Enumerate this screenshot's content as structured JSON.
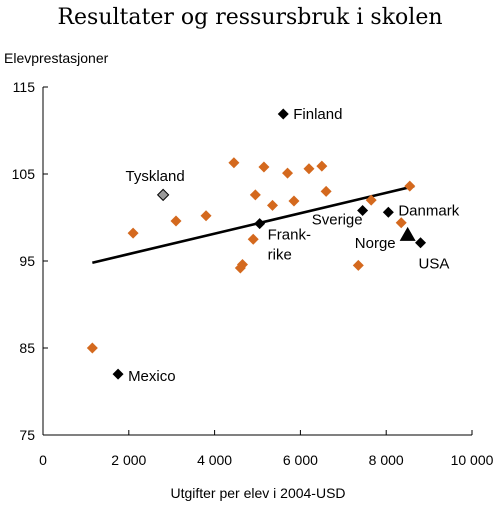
{
  "chart_data": {
    "type": "scatter",
    "title": "Resultater og ressursbruk i skolen",
    "ylabel": "Elevprestasjoner",
    "xlabel": "Utgifter per elev i 2004-USD",
    "xlim": [
      0,
      10000
    ],
    "ylim": [
      75,
      115
    ],
    "x_ticks": [
      0,
      2000,
      4000,
      6000,
      8000,
      10000
    ],
    "x_tick_labels": [
      "0",
      "2 000",
      "4 000",
      "6 000",
      "8 000",
      "10 000"
    ],
    "y_ticks": [
      75,
      85,
      95,
      105,
      115
    ],
    "y_tick_labels": [
      "75",
      "85",
      "95",
      "105",
      "115"
    ],
    "grid": false,
    "colors": {
      "other": "#D4691E",
      "highlight": "#000000",
      "germany_fill": "#9a9a9a",
      "trend": "#000000"
    },
    "trendline": {
      "x": [
        1150,
        8650
      ],
      "y": [
        94.8,
        103.6
      ]
    },
    "other_points": [
      {
        "x": 1150,
        "y": 85.0
      },
      {
        "x": 2100,
        "y": 98.2
      },
      {
        "x": 3100,
        "y": 99.6
      },
      {
        "x": 3800,
        "y": 100.2
      },
      {
        "x": 4450,
        "y": 106.3
      },
      {
        "x": 4600,
        "y": 94.2
      },
      {
        "x": 4650,
        "y": 94.6
      },
      {
        "x": 4900,
        "y": 97.5
      },
      {
        "x": 4950,
        "y": 102.6
      },
      {
        "x": 5150,
        "y": 105.8
      },
      {
        "x": 5350,
        "y": 101.4
      },
      {
        "x": 5700,
        "y": 105.1
      },
      {
        "x": 5850,
        "y": 101.9
      },
      {
        "x": 6200,
        "y": 105.6
      },
      {
        "x": 6500,
        "y": 105.9
      },
      {
        "x": 6600,
        "y": 103.0
      },
      {
        "x": 7350,
        "y": 94.5
      },
      {
        "x": 7650,
        "y": 102.0
      },
      {
        "x": 8350,
        "y": 99.4
      },
      {
        "x": 8550,
        "y": 103.6
      }
    ],
    "highlighted_points": [
      {
        "name": "Finland",
        "x": 5600,
        "y": 111.9,
        "marker": "diamond",
        "label": "Finland"
      },
      {
        "name": "Tyskland",
        "x": 2800,
        "y": 102.6,
        "marker": "diamond-gray",
        "label": "Tyskland"
      },
      {
        "name": "Frankrike",
        "x": 5050,
        "y": 99.3,
        "marker": "diamond",
        "label": "Frank-\nrike"
      },
      {
        "name": "Sverige",
        "x": 7450,
        "y": 100.8,
        "marker": "diamond",
        "label": "Sverige"
      },
      {
        "name": "Danmark",
        "x": 8050,
        "y": 100.6,
        "marker": "diamond",
        "label": "Danmark"
      },
      {
        "name": "Norge",
        "x": 8500,
        "y": 98.0,
        "marker": "triangle",
        "label": "Norge"
      },
      {
        "name": "USA",
        "x": 8800,
        "y": 97.1,
        "marker": "diamond",
        "label": "USA"
      },
      {
        "name": "Mexico",
        "x": 1750,
        "y": 82.0,
        "marker": "diamond",
        "label": "Mexico"
      }
    ]
  }
}
